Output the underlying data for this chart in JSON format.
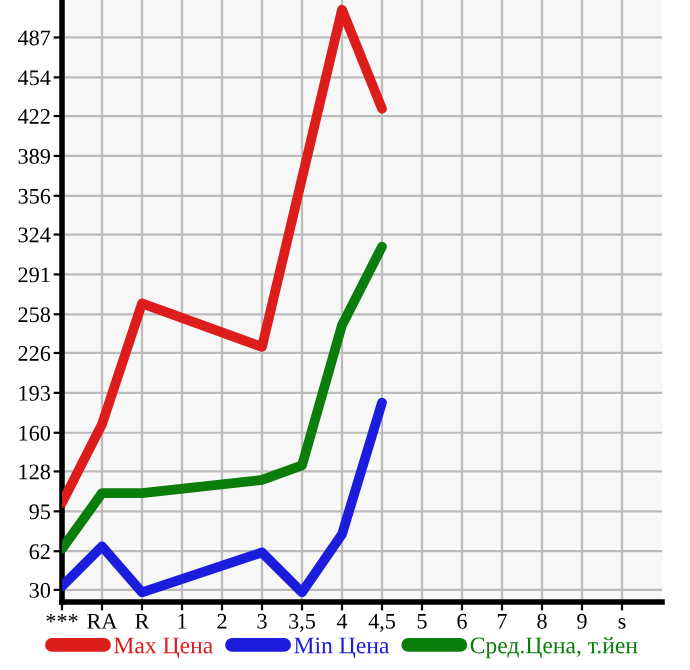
{
  "chart_data": {
    "type": "line",
    "categories": [
      "***",
      "RA",
      "R",
      "1",
      "2",
      "3",
      "3,5",
      "4",
      "4,5",
      "5",
      "6",
      "7",
      "8",
      "9",
      "s"
    ],
    "series": [
      {
        "name": "Max Цена",
        "color": "#dd1c1c",
        "values": [
          102,
          167,
          267,
          null,
          null,
          231,
          null,
          510,
          428,
          null,
          null,
          null,
          null,
          null,
          null
        ]
      },
      {
        "name": "Min Цена",
        "color": "#1c1cdd",
        "values": [
          33,
          66,
          28,
          null,
          null,
          61,
          28,
          76,
          185,
          null,
          null,
          null,
          null,
          null,
          null
        ]
      },
      {
        "name": "Сред.Цена, т.йен",
        "color": "#0a7d0a",
        "values": [
          64,
          110,
          110,
          null,
          null,
          121,
          133,
          249,
          314,
          null,
          null,
          null,
          null,
          null,
          null
        ]
      }
    ],
    "ylim": [
      20,
      518
    ],
    "yticks": [
      30,
      62,
      95,
      128,
      160,
      193,
      226,
      258,
      291,
      324,
      356,
      389,
      422,
      454,
      487
    ],
    "grid": true,
    "legend": "bottom",
    "marker": "none",
    "line_style": "solid"
  }
}
